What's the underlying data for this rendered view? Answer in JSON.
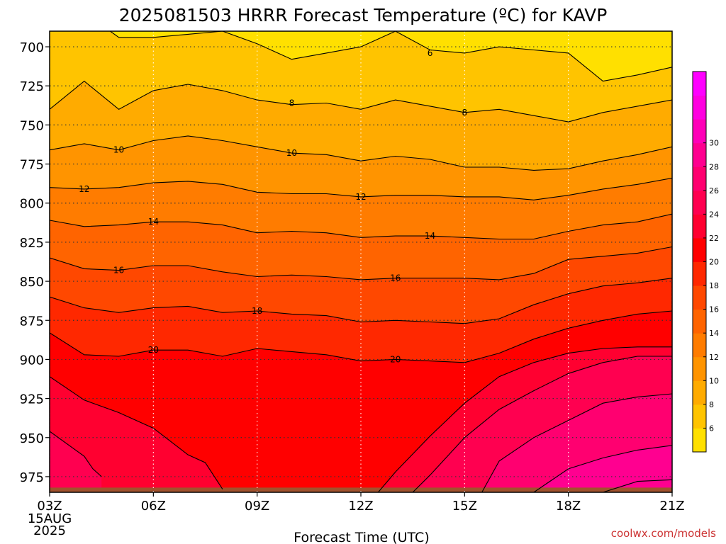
{
  "chart_data": {
    "type": "heatmap",
    "title": "2025081503 HRRR Forecast Temperature (ºC) for KAVP",
    "xlabel": "Forecast Time (UTC)",
    "credit": "coolwx.com/models",
    "x_ticks": [
      "03Z",
      "06Z",
      "09Z",
      "12Z",
      "15Z",
      "18Z",
      "21Z"
    ],
    "x_start_date": [
      "15AUG",
      "2025"
    ],
    "y_ticks": [
      700,
      725,
      750,
      775,
      800,
      825,
      850,
      875,
      900,
      925,
      950,
      975
    ],
    "x_range_hours": [
      3,
      21
    ],
    "y_range_hPa": [
      690,
      985
    ],
    "grid": true,
    "colorbar": {
      "ticks": [
        6,
        8,
        10,
        12,
        14,
        16,
        18,
        20,
        22,
        24,
        26,
        28,
        30
      ],
      "colors": [
        "#ffe000",
        "#ffc400",
        "#ffab00",
        "#ff9400",
        "#ff7c00",
        "#ff6400",
        "#ff4800",
        "#ff2800",
        "#ff0000",
        "#ff0030",
        "#ff0050",
        "#ff0070",
        "#ff0090",
        "#ff00b8",
        "#ff00e0",
        "#ff00ff"
      ]
    },
    "contours": [
      {
        "value": 6,
        "label": "6",
        "points": [
          [
            4.75,
            690
          ],
          [
            5,
            694
          ],
          [
            6,
            694
          ],
          [
            7,
            692
          ],
          [
            8,
            690
          ],
          [
            9,
            698
          ],
          [
            10,
            708
          ],
          [
            11,
            704
          ],
          [
            12,
            700
          ],
          [
            13,
            690
          ],
          [
            14,
            702
          ],
          [
            15,
            704
          ],
          [
            16,
            700
          ],
          [
            17,
            702
          ],
          [
            18,
            704
          ],
          [
            19,
            722
          ],
          [
            20,
            718
          ],
          [
            21,
            713
          ]
        ]
      },
      {
        "value": 8,
        "label": "8",
        "points": [
          [
            3,
            740
          ],
          [
            4,
            722
          ],
          [
            5,
            740
          ],
          [
            6,
            728
          ],
          [
            7,
            724
          ],
          [
            8,
            728
          ],
          [
            9,
            734
          ],
          [
            10,
            737
          ],
          [
            11,
            736
          ],
          [
            12,
            740
          ],
          [
            13,
            734
          ],
          [
            14,
            738
          ],
          [
            15,
            742
          ],
          [
            16,
            740
          ],
          [
            17,
            744
          ],
          [
            18,
            748
          ],
          [
            19,
            742
          ],
          [
            20,
            738
          ],
          [
            21,
            734
          ]
        ]
      },
      {
        "value": 10,
        "label": "10",
        "points": [
          [
            3,
            766
          ],
          [
            4,
            762
          ],
          [
            5,
            766
          ],
          [
            6,
            760
          ],
          [
            7,
            757
          ],
          [
            8,
            760
          ],
          [
            9,
            764
          ],
          [
            10,
            768
          ],
          [
            11,
            769
          ],
          [
            12,
            773
          ],
          [
            13,
            770
          ],
          [
            14,
            772
          ],
          [
            15,
            777
          ],
          [
            16,
            777
          ],
          [
            17,
            779
          ],
          [
            18,
            778
          ],
          [
            19,
            773
          ],
          [
            20,
            769
          ],
          [
            21,
            764
          ]
        ]
      },
      {
        "value": 12,
        "label": "12",
        "points": [
          [
            3,
            790
          ],
          [
            4,
            791
          ],
          [
            5,
            790
          ],
          [
            6,
            787
          ],
          [
            7,
            786
          ],
          [
            8,
            788
          ],
          [
            9,
            793
          ],
          [
            10,
            794
          ],
          [
            11,
            794
          ],
          [
            12,
            796
          ],
          [
            13,
            795
          ],
          [
            14,
            795
          ],
          [
            15,
            796
          ],
          [
            16,
            796
          ],
          [
            17,
            798
          ],
          [
            18,
            795
          ],
          [
            19,
            791
          ],
          [
            20,
            788
          ],
          [
            21,
            784
          ]
        ]
      },
      {
        "value": 14,
        "label": "14",
        "points": [
          [
            3,
            811
          ],
          [
            4,
            815
          ],
          [
            5,
            814
          ],
          [
            6,
            812
          ],
          [
            7,
            812
          ],
          [
            8,
            814
          ],
          [
            9,
            819
          ],
          [
            10,
            818
          ],
          [
            11,
            819
          ],
          [
            12,
            822
          ],
          [
            13,
            821
          ],
          [
            14,
            821
          ],
          [
            15,
            822
          ],
          [
            16,
            823
          ],
          [
            17,
            823
          ],
          [
            18,
            818
          ],
          [
            19,
            814
          ],
          [
            20,
            812
          ],
          [
            21,
            807
          ]
        ]
      },
      {
        "value": 16,
        "label": "16",
        "points": [
          [
            3,
            835
          ],
          [
            4,
            842
          ],
          [
            5,
            843
          ],
          [
            6,
            840
          ],
          [
            7,
            840
          ],
          [
            8,
            844
          ],
          [
            9,
            847
          ],
          [
            10,
            846
          ],
          [
            11,
            847
          ],
          [
            12,
            849
          ],
          [
            13,
            848
          ],
          [
            14,
            848
          ],
          [
            15,
            848
          ],
          [
            16,
            849
          ],
          [
            17,
            845
          ],
          [
            18,
            836
          ],
          [
            19,
            834
          ],
          [
            20,
            832
          ],
          [
            21,
            828
          ]
        ]
      },
      {
        "value": 18,
        "label": "18",
        "points": [
          [
            3,
            860
          ],
          [
            4,
            867
          ],
          [
            5,
            870
          ],
          [
            6,
            867
          ],
          [
            7,
            866
          ],
          [
            8,
            870
          ],
          [
            9,
            869
          ],
          [
            10,
            871
          ],
          [
            11,
            872
          ],
          [
            12,
            876
          ],
          [
            13,
            875
          ],
          [
            14,
            876
          ],
          [
            15,
            877
          ],
          [
            16,
            874
          ],
          [
            17,
            865
          ],
          [
            18,
            858
          ],
          [
            19,
            853
          ],
          [
            20,
            851
          ],
          [
            21,
            848
          ]
        ]
      },
      {
        "value": 20,
        "label": "20",
        "points": [
          [
            3,
            883
          ],
          [
            4,
            897
          ],
          [
            5,
            898
          ],
          [
            6,
            894
          ],
          [
            7,
            894
          ],
          [
            8,
            898
          ],
          [
            9,
            893
          ],
          [
            10,
            895
          ],
          [
            11,
            897
          ],
          [
            12,
            901
          ],
          [
            13,
            900
          ],
          [
            14,
            901
          ],
          [
            15,
            902
          ],
          [
            16,
            896
          ],
          [
            17,
            887
          ],
          [
            18,
            880
          ],
          [
            19,
            875
          ],
          [
            20,
            871
          ],
          [
            21,
            869
          ]
        ]
      },
      {
        "value": 22,
        "label": "",
        "points": [
          [
            3,
            911
          ],
          [
            4,
            926
          ],
          [
            5,
            934
          ],
          [
            6,
            944
          ],
          [
            7,
            961
          ],
          [
            7.5,
            966
          ],
          [
            8,
            983
          ]
        ]
      },
      {
        "value": 22,
        "label": "",
        "points": [
          [
            12.5,
            985
          ],
          [
            13,
            972
          ],
          [
            14,
            949
          ],
          [
            15,
            928
          ],
          [
            16,
            911
          ],
          [
            17,
            902
          ],
          [
            18,
            896
          ],
          [
            19,
            893
          ],
          [
            20,
            892
          ],
          [
            21,
            892
          ]
        ]
      },
      {
        "value": 24,
        "label": "",
        "points": [
          [
            3,
            946
          ],
          [
            4,
            962
          ],
          [
            4.25,
            970
          ],
          [
            4.5,
            975
          ]
        ]
      },
      {
        "value": 24,
        "label": "",
        "points": [
          [
            13.5,
            985
          ],
          [
            14,
            974
          ],
          [
            15,
            950
          ],
          [
            16,
            932
          ],
          [
            17,
            920
          ],
          [
            18,
            909
          ],
          [
            19,
            902
          ],
          [
            20,
            898
          ],
          [
            21,
            898
          ]
        ]
      },
      {
        "value": 26,
        "label": "",
        "points": [
          [
            15.5,
            985
          ],
          [
            16,
            965
          ],
          [
            17,
            950
          ],
          [
            18,
            939
          ],
          [
            19,
            928
          ],
          [
            20,
            924
          ],
          [
            21,
            922
          ]
        ]
      },
      {
        "value": 28,
        "label": "",
        "points": [
          [
            17,
            985
          ],
          [
            18,
            970
          ],
          [
            19,
            963
          ],
          [
            20,
            958
          ],
          [
            21,
            955
          ]
        ]
      },
      {
        "value": 30,
        "label": "",
        "points": [
          [
            19,
            985
          ],
          [
            20,
            978
          ],
          [
            21,
            977
          ]
        ]
      }
    ],
    "contour_labels": [
      {
        "text": "6",
        "x": 14.0,
        "y": 704
      },
      {
        "text": "8",
        "x": 10.0,
        "y": 736
      },
      {
        "text": "8",
        "x": 15.0,
        "y": 742
      },
      {
        "text": "10",
        "x": 5.0,
        "y": 766
      },
      {
        "text": "10",
        "x": 10.0,
        "y": 768
      },
      {
        "text": "12",
        "x": 4.0,
        "y": 791
      },
      {
        "text": "12",
        "x": 12.0,
        "y": 796
      },
      {
        "text": "14",
        "x": 6.0,
        "y": 812
      },
      {
        "text": "14",
        "x": 14.0,
        "y": 821
      },
      {
        "text": "16",
        "x": 5.0,
        "y": 843
      },
      {
        "text": "16",
        "x": 13.0,
        "y": 848
      },
      {
        "text": "18",
        "x": 9.0,
        "y": 869
      },
      {
        "text": "20",
        "x": 6.0,
        "y": 894
      },
      {
        "text": "20",
        "x": 13.0,
        "y": 900
      }
    ],
    "ground": {
      "color": "#a0522d",
      "pressure_top": 982
    }
  }
}
